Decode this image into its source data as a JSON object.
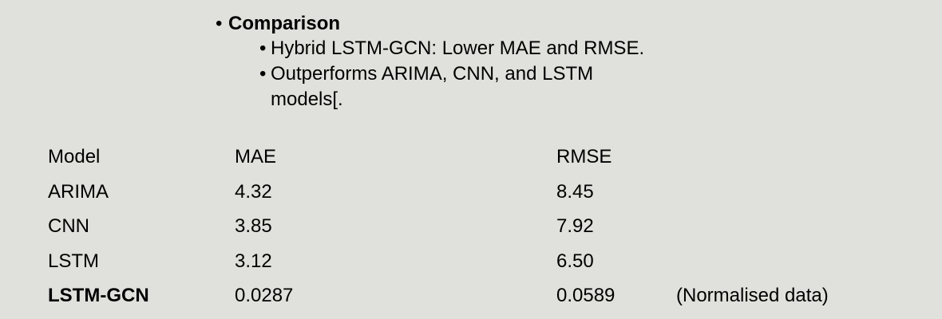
{
  "heading": {
    "label": "Comparison"
  },
  "sub_bullets": [
    {
      "text": "Hybrid LSTM-GCN: Lower MAE and RMSE."
    },
    {
      "text": "Outperforms ARIMA, CNN, and LSTM models[."
    }
  ],
  "table": {
    "headers": [
      "Model",
      "MAE",
      "RMSE"
    ],
    "rows": [
      {
        "model": "ARIMA",
        "mae": "4.32",
        "rmse": "8.45",
        "note": ""
      },
      {
        "model": "CNN",
        "mae": "3.85",
        "rmse": "7.92",
        "note": ""
      },
      {
        "model": "LSTM",
        "mae": "3.12",
        "rmse": "6.50",
        "note": ""
      },
      {
        "model": "LSTM-GCN",
        "mae": "0.0287",
        "rmse": "0.0589",
        "note": "(Normalised data)"
      }
    ]
  }
}
